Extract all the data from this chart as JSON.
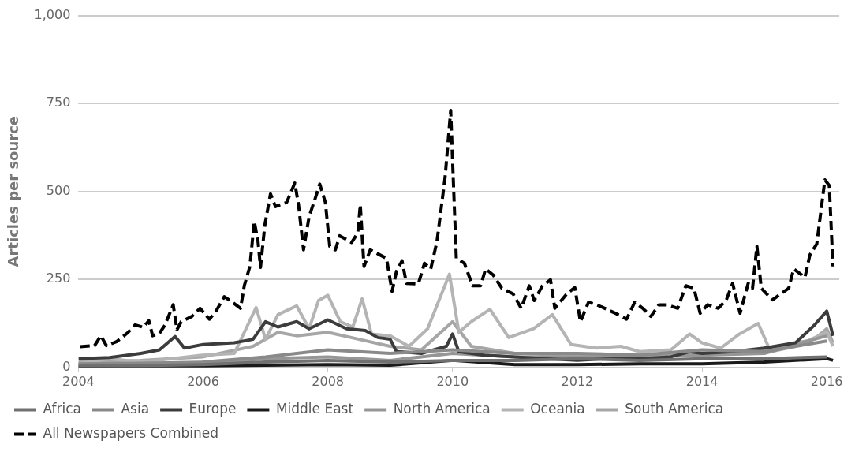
{
  "chart_data": {
    "type": "line",
    "ylabel": "Articles per source",
    "xlim": [
      2004,
      2016.2
    ],
    "xticks": [
      2004,
      2006,
      2008,
      2010,
      2012,
      2014,
      2016
    ],
    "ylim": [
      0,
      1000
    ],
    "yticks": [
      0,
      250,
      500,
      750,
      {
        "value": 1000,
        "label": "1,000"
      }
    ],
    "grid": "y",
    "legend": "bottom",
    "marker": "none",
    "line_style": "solid",
    "series": [
      {
        "name": "Africa",
        "color": "#707070",
        "x": [
          2004,
          2005,
          2006,
          2007,
          2008,
          2009,
          2010,
          2011,
          2012,
          2013,
          2014,
          2015,
          2016
        ],
        "values": [
          5,
          5,
          8,
          15,
          20,
          15,
          20,
          20,
          25,
          20,
          25,
          25,
          30
        ]
      },
      {
        "name": "Asia",
        "color": "#8a8a8a",
        "x": [
          2004,
          2005,
          2006,
          2007,
          2008,
          2009,
          2010,
          2011,
          2012,
          2013,
          2014,
          2015,
          2016
        ],
        "values": [
          10,
          12,
          15,
          30,
          50,
          40,
          50,
          40,
          40,
          35,
          50,
          45,
          75
        ]
      },
      {
        "name": "Europe",
        "color": "#3c3c3c",
        "x": [
          2004,
          2004.5,
          2005,
          2005.3,
          2005.55,
          2005.7,
          2006,
          2006.5,
          2006.8,
          2007,
          2007.2,
          2007.5,
          2007.7,
          2008,
          2008.3,
          2008.6,
          2008.8,
          2009,
          2009.1,
          2009.5,
          2009.9,
          2010,
          2010.1,
          2010.5,
          2011,
          2011.5,
          2012,
          2012.5,
          2013,
          2013.5,
          2013.8,
          2014,
          2014.5,
          2015,
          2015.5,
          2015.8,
          2016,
          2016.1
        ],
        "values": [
          25,
          28,
          40,
          50,
          88,
          55,
          65,
          70,
          80,
          130,
          115,
          130,
          110,
          135,
          110,
          105,
          85,
          80,
          45,
          40,
          60,
          95,
          45,
          35,
          30,
          25,
          20,
          25,
          25,
          30,
          45,
          40,
          45,
          55,
          70,
          120,
          160,
          90
        ]
      },
      {
        "name": "Middle East",
        "color": "#1a1a1a",
        "x": [
          2004,
          2005,
          2006,
          2007,
          2008,
          2009,
          2010,
          2011,
          2012,
          2013,
          2014,
          2015,
          2016,
          2016.1
        ],
        "values": [
          2,
          3,
          4,
          6,
          8,
          6,
          20,
          8,
          8,
          10,
          10,
          15,
          25,
          20
        ]
      },
      {
        "name": "North America",
        "color": "#969696",
        "x": [
          2004,
          2005,
          2006,
          2007,
          2008,
          2009,
          2010,
          2011,
          2012,
          2013,
          2014,
          2015,
          2016
        ],
        "values": [
          5,
          8,
          10,
          25,
          30,
          20,
          40,
          30,
          30,
          30,
          35,
          40,
          90
        ]
      },
      {
        "name": "Oceania",
        "color": "#b4b4b4",
        "x": [
          2004,
          2004.5,
          2005,
          2005.5,
          2006,
          2006.5,
          2006.85,
          2007,
          2007.2,
          2007.5,
          2007.7,
          2007.85,
          2008,
          2008.2,
          2008.4,
          2008.55,
          2008.7,
          2009,
          2009.3,
          2009.6,
          2009.95,
          2010.1,
          2010.3,
          2010.6,
          2010.9,
          2011.3,
          2011.6,
          2011.9,
          2012.3,
          2012.7,
          2013,
          2013.5,
          2013.8,
          2014,
          2014.3,
          2014.6,
          2014.9,
          2015.1,
          2015.5,
          2016,
          2016.1
        ],
        "values": [
          10,
          25,
          15,
          25,
          35,
          40,
          170,
          80,
          150,
          175,
          110,
          190,
          205,
          130,
          115,
          195,
          95,
          90,
          60,
          110,
          265,
          100,
          130,
          165,
          85,
          110,
          150,
          65,
          55,
          60,
          45,
          50,
          95,
          70,
          55,
          95,
          125,
          45,
          60,
          100,
          60
        ]
      },
      {
        "name": "South America",
        "color": "#a6a6a6",
        "x": [
          2004,
          2005,
          2006,
          2006.8,
          2007.2,
          2007.5,
          2008,
          2008.5,
          2009,
          2009.5,
          2010,
          2010.3,
          2011,
          2012,
          2013,
          2014,
          2015,
          2015.8,
          2016,
          2016.1
        ],
        "values": [
          15,
          20,
          30,
          60,
          100,
          90,
          100,
          80,
          60,
          50,
          130,
          60,
          40,
          35,
          35,
          40,
          50,
          80,
          110,
          70
        ]
      },
      {
        "name": "All Newspapers Combined",
        "color": "#000000",
        "line_style": "dashed",
        "x": [
          2004.03,
          2004.26,
          2004.36,
          2004.45,
          2004.61,
          2004.78,
          2004.91,
          2005.04,
          2005.13,
          2005.19,
          2005.3,
          2005.39,
          2005.52,
          2005.58,
          2005.65,
          2005.82,
          2005.95,
          2006.1,
          2006.21,
          2006.34,
          2006.47,
          2006.6,
          2006.66,
          2006.75,
          2006.82,
          2006.88,
          2006.92,
          2006.99,
          2007.08,
          2007.16,
          2007.34,
          2007.47,
          2007.53,
          2007.61,
          2007.7,
          2007.79,
          2007.87,
          2007.96,
          2008.03,
          2008.12,
          2008.19,
          2008.38,
          2008.48,
          2008.52,
          2008.58,
          2008.68,
          2008.81,
          2008.94,
          2009.03,
          2009.1,
          2009.19,
          2009.26,
          2009.45,
          2009.55,
          2009.65,
          2009.75,
          2009.88,
          2009.97,
          2010.01,
          2010.06,
          2010.19,
          2010.32,
          2010.45,
          2010.53,
          2010.65,
          2010.79,
          2010.97,
          2011.1,
          2011.23,
          2011.31,
          2011.44,
          2011.57,
          2011.64,
          2011.83,
          2011.96,
          2012.05,
          2012.18,
          2012.31,
          2012.44,
          2012.61,
          2012.79,
          2012.92,
          2013.05,
          2013.18,
          2013.31,
          2013.44,
          2013.61,
          2013.74,
          2013.87,
          2013.97,
          2014.09,
          2014.26,
          2014.39,
          2014.49,
          2014.61,
          2014.74,
          2014.81,
          2014.88,
          2014.95,
          2015.13,
          2015.26,
          2015.39,
          2015.47,
          2015.65,
          2015.73,
          2015.84,
          2015.97,
          2016.04,
          2016.1
        ],
        "values": [
          59,
          62,
          90,
          62,
          73,
          97,
          121,
          114,
          133,
          90,
          97,
          121,
          178,
          107,
          130,
          145,
          168,
          137,
          161,
          201,
          185,
          168,
          232,
          287,
          415,
          358,
          284,
          405,
          493,
          457,
          469,
          524,
          462,
          334,
          429,
          476,
          521,
          469,
          344,
          334,
          374,
          355,
          382,
          462,
          287,
          334,
          322,
          310,
          216,
          273,
          303,
          239,
          237,
          296,
          280,
          358,
          540,
          730,
          540,
          310,
          296,
          232,
          232,
          280,
          263,
          225,
          209,
          168,
          232,
          190,
          232,
          249,
          168,
          209,
          227,
          130,
          185,
          178,
          168,
          154,
          137,
          185,
          168,
          145,
          178,
          178,
          168,
          232,
          225,
          154,
          178,
          168,
          192,
          239,
          154,
          239,
          225,
          344,
          225,
          192,
          209,
          225,
          280,
          256,
          320,
          351,
          533,
          517,
          287
        ]
      }
    ]
  }
}
